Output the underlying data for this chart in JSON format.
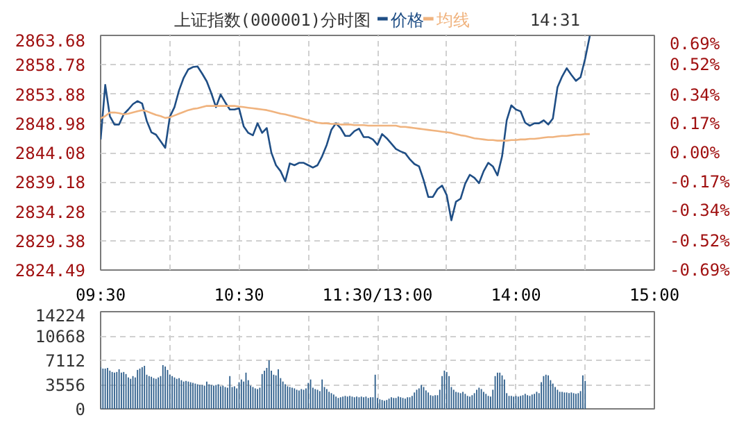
{
  "chart_data": [
    {
      "type": "line",
      "title": "上证指数(000001)",
      "subtitle": "分时图",
      "annotations": [
        "14:31"
      ],
      "legend": "top",
      "grid": true,
      "line_style": "solid",
      "marker": "none",
      "categories": [
        "09:30",
        null,
        null,
        null,
        null,
        null,
        null,
        null,
        null,
        null,
        null,
        null,
        null,
        null,
        null,
        null,
        null,
        null,
        null,
        null,
        null,
        null,
        null,
        null,
        null,
        null,
        null,
        null,
        null,
        null,
        "10:30",
        null,
        null,
        null,
        null,
        null,
        null,
        null,
        null,
        null,
        null,
        null,
        null,
        null,
        null,
        null,
        null,
        null,
        null,
        null,
        null,
        null,
        null,
        null,
        null,
        null,
        null,
        null,
        null,
        null,
        "11:30/13:00",
        null,
        null,
        null,
        null,
        null,
        null,
        null,
        null,
        null,
        null,
        null,
        null,
        null,
        null,
        null,
        null,
        null,
        null,
        null,
        null,
        null,
        null,
        null,
        null,
        null,
        null,
        null,
        null,
        null,
        "14:00",
        null,
        null,
        null,
        null,
        null,
        null,
        null,
        null,
        null,
        null,
        null,
        null,
        null,
        null,
        null,
        null,
        null,
        null,
        null,
        null,
        null,
        null,
        null,
        null,
        null,
        null,
        null,
        null,
        null,
        "15:00"
      ],
      "ylim": [
        2824.49,
        2863.68
      ],
      "yticks": [
        2824.49,
        2829.38,
        2834.28,
        2839.18,
        2844.08,
        2848.98,
        2853.88,
        2858.78,
        2863.68
      ],
      "y2lim": [
        -0.69,
        0.69
      ],
      "y2ticks": [
        {
          "value": -0.69,
          "label": "-0.69%"
        },
        {
          "value": -0.52,
          "label": "-0.52%"
        },
        {
          "value": -0.34,
          "label": "-0.34%"
        },
        {
          "value": -0.17,
          "label": "-0.17%"
        },
        {
          "value": 0,
          "label": "0.00%"
        },
        {
          "value": 0.17,
          "label": "0.17%"
        },
        {
          "value": 0.34,
          "label": "0.34%"
        },
        {
          "value": 0.52,
          "label": "0.52%"
        },
        {
          "value": 0.69,
          "label": "0.69%"
        }
      ],
      "series": [
        {
          "name": "价格",
          "color": "#1f4e85",
          "values": [
            2846.3,
            2855.4,
            2850.2,
            2848.8,
            2848.8,
            2850.5,
            2851.3,
            2852.2,
            2852.7,
            2852.3,
            2849.4,
            2847.5,
            2847.1,
            2846.0,
            2844.9,
            2850.1,
            2851.7,
            2854.5,
            2856.6,
            2858.0,
            2858.4,
            2858.5,
            2857.3,
            2856.0,
            2854.0,
            2851.7,
            2853.8,
            2852.5,
            2851.3,
            2851.3,
            2851.5,
            2848.5,
            2847.4,
            2847.0,
            2849.0,
            2847.4,
            2848.2,
            2844.1,
            2842.0,
            2841.0,
            2839.3,
            2842.3,
            2842.0,
            2842.4,
            2842.4,
            2842.0,
            2841.6,
            2842.0,
            2843.5,
            2845.4,
            2847.9,
            2849.0,
            2848.2,
            2846.9,
            2846.9,
            2847.7,
            2848.1,
            2846.7,
            2846.7,
            2846.3,
            2845.4,
            2847.2,
            2846.5,
            2845.6,
            2844.7,
            2844.3,
            2844.0,
            2843.0,
            2842.2,
            2841.8,
            2839.5,
            2836.7,
            2836.7,
            2838.0,
            2838.6,
            2837.0,
            2832.8,
            2835.9,
            2836.4,
            2838.9,
            2840.4,
            2839.9,
            2839.0,
            2841.0,
            2842.4,
            2841.8,
            2840.3,
            2843.5,
            2849.5,
            2852.0,
            2851.3,
            2851.0,
            2849.1,
            2848.6,
            2849.0,
            2849.0,
            2849.5,
            2848.8,
            2849.8,
            2855.0,
            2856.8,
            2858.2,
            2857.1,
            2856.1,
            2856.7,
            2859.8,
            2863.6,
            null,
            null,
            null,
            null,
            null,
            null,
            null,
            null,
            null,
            null,
            null,
            null,
            null,
            null
          ]
        },
        {
          "name": "均线",
          "color": "#f0b37e",
          "values": [
            2849.8,
            2850.2,
            2850.8,
            2850.8,
            2850.7,
            2850.5,
            2850.6,
            2850.8,
            2851.0,
            2851.2,
            2851.0,
            2850.7,
            2850.4,
            2850.2,
            2849.9,
            2850.0,
            2850.3,
            2850.6,
            2850.9,
            2851.2,
            2851.4,
            2851.5,
            2851.7,
            2851.9,
            2851.9,
            2851.9,
            2851.9,
            2851.9,
            2851.9,
            2851.9,
            2851.8,
            2851.7,
            2851.6,
            2851.5,
            2851.4,
            2851.3,
            2851.2,
            2851.0,
            2850.8,
            2850.6,
            2850.5,
            2850.3,
            2850.1,
            2849.9,
            2849.7,
            2849.5,
            2849.3,
            2849.1,
            2849.0,
            2849.0,
            2848.9,
            2848.9,
            2848.8,
            2848.8,
            2848.8,
            2848.7,
            2848.7,
            2848.7,
            2848.6,
            2848.6,
            2848.6,
            2848.6,
            2848.6,
            2848.6,
            2848.6,
            2848.4,
            2848.4,
            2848.3,
            2848.2,
            2848.1,
            2848.0,
            2847.9,
            2847.8,
            2847.7,
            2847.6,
            2847.5,
            2847.4,
            2847.2,
            2847.0,
            2846.9,
            2846.7,
            2846.5,
            2846.4,
            2846.3,
            2846.2,
            2846.2,
            2846.1,
            2846.1,
            2846.1,
            2846.2,
            2846.2,
            2846.3,
            2846.3,
            2846.4,
            2846.4,
            2846.5,
            2846.6,
            2846.7,
            2846.7,
            2846.8,
            2846.9,
            2846.9,
            2847.0,
            2847.1,
            2847.1,
            2847.2,
            2847.2,
            null,
            null,
            null,
            null,
            null,
            null,
            null,
            null,
            null,
            null,
            null,
            null,
            null,
            null
          ]
        }
      ]
    },
    {
      "type": "bar",
      "grid": true,
      "tick_labels": "y",
      "categories": [
        null,
        null,
        null,
        null,
        null,
        null,
        null,
        null,
        null,
        null,
        null,
        null,
        null,
        null,
        null,
        null,
        null,
        null,
        null,
        null,
        null,
        null,
        null,
        null,
        null,
        null,
        null,
        null,
        null,
        null,
        null,
        null,
        null,
        null,
        null,
        null,
        null,
        null,
        null,
        null,
        null,
        null,
        null,
        null,
        null,
        null,
        null,
        null,
        null,
        null,
        null,
        null,
        null,
        null,
        null,
        null,
        null,
        null,
        null,
        null,
        null,
        null,
        null,
        null,
        null,
        null,
        null,
        null,
        null,
        null,
        null,
        null,
        null,
        null,
        null,
        null,
        null,
        null,
        null,
        null,
        null,
        null,
        null,
        null,
        null,
        null,
        null,
        null,
        null,
        null,
        null,
        null,
        null,
        null,
        null,
        null,
        null,
        null,
        null,
        null,
        null,
        null,
        null,
        null,
        null,
        null,
        null,
        null,
        null,
        null,
        null,
        null,
        null,
        null,
        null,
        null,
        null,
        null,
        null,
        null,
        null,
        null,
        null,
        null,
        null,
        null,
        null,
        null,
        null,
        null,
        null,
        null,
        null,
        null,
        null,
        null,
        null,
        null,
        null,
        null,
        null,
        null,
        null,
        null,
        null,
        null,
        null,
        null,
        null,
        null,
        null,
        null,
        null,
        null,
        null,
        null,
        null,
        null,
        null,
        null,
        null,
        null,
        null,
        null,
        null,
        null,
        null,
        null,
        null,
        null,
        null,
        null,
        null,
        null,
        null,
        null,
        null,
        null,
        null,
        null,
        null,
        null,
        null,
        null,
        null,
        null,
        null,
        null,
        null,
        null,
        null,
        null,
        null,
        null,
        null,
        null,
        null,
        null,
        null,
        null,
        null,
        null,
        null,
        null,
        null,
        null,
        null,
        null,
        null,
        null,
        null,
        null,
        null,
        null,
        null,
        null,
        null,
        null,
        null,
        null,
        null,
        null,
        null,
        null,
        null,
        null,
        null,
        null,
        null,
        null,
        null,
        null,
        null,
        null,
        null,
        null,
        null,
        null,
        null,
        null,
        null
      ],
      "ylim": [
        0,
        14224
      ],
      "yticks": [
        0,
        3556,
        7112,
        10668,
        14224
      ],
      "series": [
        {
          "color": "#2f5f8c",
          "values": [
            6100,
            5900,
            5900,
            6000,
            5600,
            5400,
            5300,
            5400,
            5800,
            5300,
            5400,
            5100,
            4600,
            4400,
            4800,
            4600,
            5700,
            5900,
            6100,
            6300,
            5000,
            4800,
            4700,
            4500,
            4400,
            4600,
            4800,
            6400,
            6200,
            5700,
            5000,
            4800,
            4600,
            4400,
            4500,
            4200,
            4000,
            4100,
            4000,
            3900,
            3800,
            3700,
            3600,
            3500,
            3500,
            3400,
            4000,
            3600,
            3500,
            3400,
            3500,
            3600,
            3300,
            3400,
            3200,
            3100,
            4800,
            3200,
            3300,
            3000,
            3900,
            4300,
            4000,
            5300,
            4200,
            3400,
            3200,
            3000,
            2900,
            3100,
            5100,
            5600,
            6000,
            7100,
            5600,
            5000,
            4900,
            5800,
            4500,
            4000,
            3600,
            3300,
            3200,
            3100,
            3000,
            2800,
            2700,
            2900,
            2800,
            3000,
            3800,
            4300,
            3100,
            2900,
            2800,
            2600,
            4300,
            3200,
            2900,
            2500,
            2300,
            2100,
            1800,
            1600,
            1700,
            1800,
            1900,
            1800,
            1900,
            1800,
            1700,
            1800,
            1700,
            1800,
            1700,
            1800,
            1600,
            1700,
            1700,
            5000,
            1600,
            1400,
            1300,
            1200,
            1300,
            1500,
            1700,
            1600,
            1600,
            1800,
            1700,
            1600,
            1500,
            1700,
            1700,
            1900,
            2400,
            2800,
            3000,
            3500,
            3200,
            2700,
            2400,
            2000,
            1900,
            2000,
            2000,
            2800,
            4800,
            5600,
            5400,
            4800,
            3200,
            2800,
            2500,
            2400,
            2300,
            2500,
            2200,
            1900,
            1800,
            2000,
            2300,
            2800,
            3100,
            2900,
            2500,
            2200,
            1900,
            1800,
            2800,
            4800,
            5300,
            5300,
            4900,
            4300,
            2300,
            1900,
            1900,
            1800,
            1900,
            1800,
            1900,
            2000,
            2200,
            2000,
            1900,
            2100,
            2200,
            2500,
            2300,
            3900,
            4800,
            5000,
            4900,
            4200,
            3700,
            3200,
            2800,
            2500,
            2500,
            2400,
            2400,
            2300,
            2400,
            2300,
            2200,
            2300,
            2600,
            4900,
            4100,
            null,
            null,
            null,
            null,
            null,
            null,
            null,
            null,
            null,
            null,
            null,
            null,
            null,
            null,
            null,
            null,
            null,
            null,
            null,
            null,
            null,
            null,
            null,
            null,
            null,
            null,
            null,
            null,
            null,
            null
          ]
        }
      ]
    }
  ]
}
